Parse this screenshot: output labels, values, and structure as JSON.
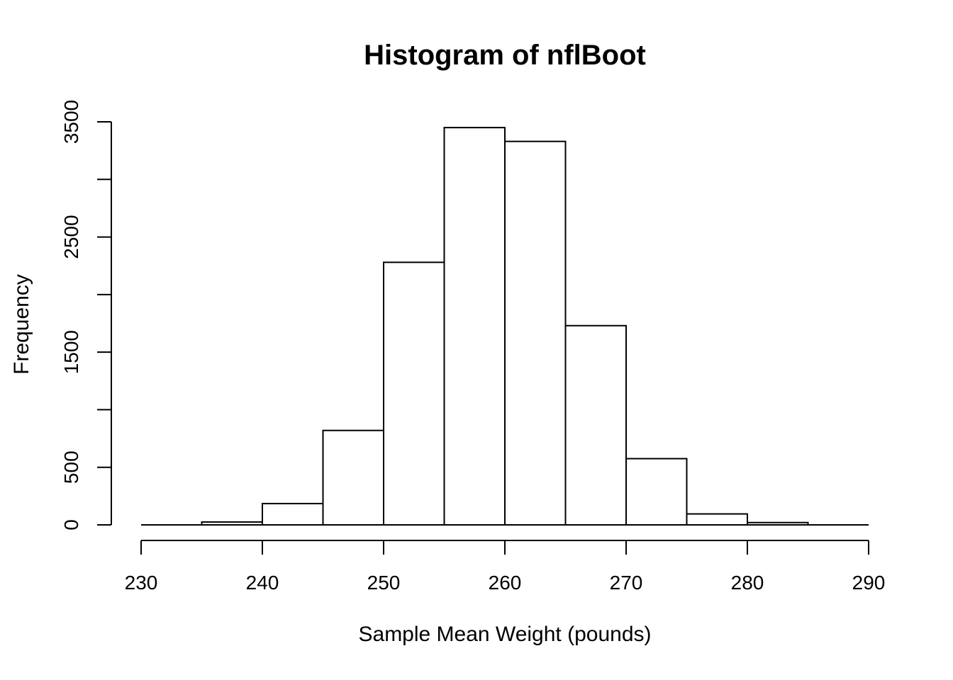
{
  "page": {
    "background_color": "#ffffff",
    "foreground_color": "#000000"
  },
  "chart_data": {
    "type": "bar",
    "subtype": "histogram",
    "title": "Histogram of nflBoot",
    "xlabel": "Sample Mean Weight (pounds)",
    "ylabel": "Frequency",
    "bin_width": 5,
    "bin_edges": [
      230,
      235,
      240,
      245,
      250,
      255,
      260,
      265,
      270,
      275,
      280,
      285,
      290
    ],
    "frequencies": [
      0,
      25,
      185,
      820,
      2280,
      3450,
      3330,
      1730,
      575,
      95,
      20,
      0
    ],
    "x_ticks": [
      230,
      240,
      250,
      260,
      270,
      280,
      290
    ],
    "x_tick_labels": [
      "230",
      "240",
      "250",
      "260",
      "270",
      "280",
      "290"
    ],
    "y_ticks": [
      0,
      500,
      1000,
      1500,
      2000,
      2500,
      3000,
      3500
    ],
    "y_tick_labels": [
      "0",
      "500",
      "",
      "1500",
      "",
      "2500",
      "",
      "3500"
    ],
    "xlim": [
      230,
      290
    ],
    "ylim": [
      0,
      3500
    ],
    "grid": false,
    "legend_position": "none",
    "bar_fill": "#ffffff",
    "bar_stroke": "#000000",
    "axis_color": "#000000"
  }
}
